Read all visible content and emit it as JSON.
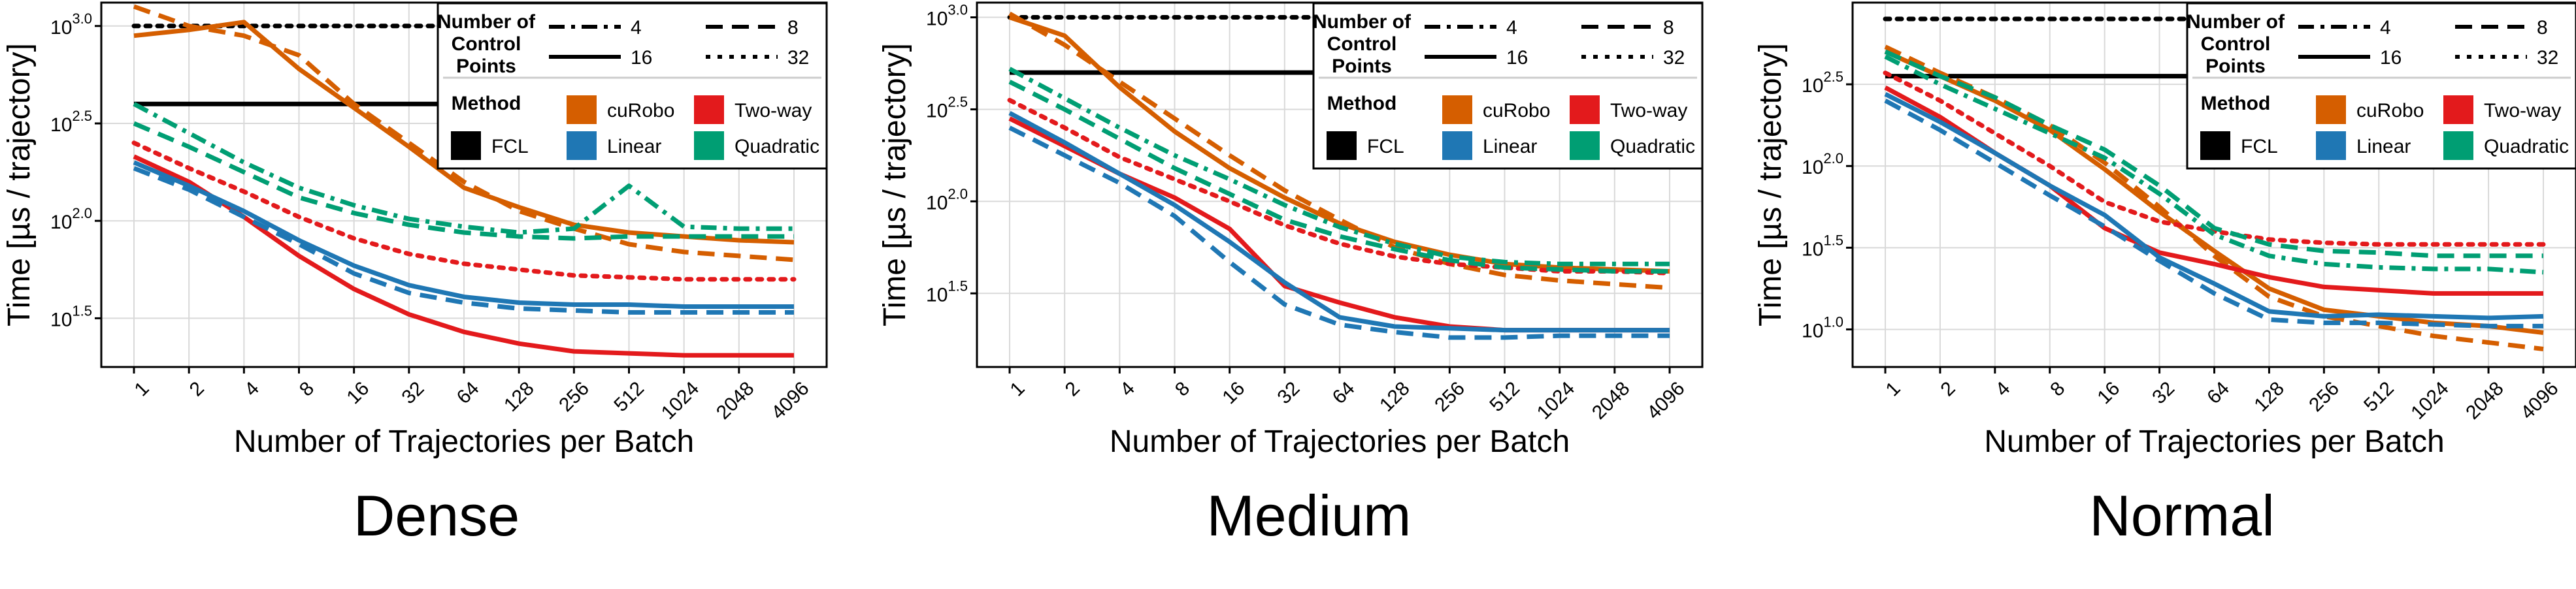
{
  "colors": {
    "FCL": "#000000",
    "cuRobo": "#D55E00",
    "Two-way": "#E31A1C",
    "Linear": "#1F77B4",
    "Quadratic": "#009E73",
    "grid": "#d9d9d9"
  },
  "legend": {
    "control_points_title": [
      "Number of",
      "Control",
      "Points"
    ],
    "control_points": [
      {
        "label": "4",
        "dash": "dashdot"
      },
      {
        "label": "8",
        "dash": "dash"
      },
      {
        "label": "16",
        "dash": "solid"
      },
      {
        "label": "32",
        "dash": "dot"
      }
    ],
    "method_title": "Method",
    "methods": [
      "FCL",
      "cuRobo",
      "Two-way",
      "Linear",
      "Quadratic"
    ]
  },
  "chart_data": [
    {
      "type": "line",
      "caption": "Dense",
      "xlabel": "Number of Trajectories per Batch",
      "ylabel": "Time [µs / trajectory]",
      "x": [
        1,
        2,
        4,
        8,
        16,
        32,
        64,
        128,
        256,
        512,
        1024,
        2048,
        4096
      ],
      "yscale": "log10",
      "ylim_log10": [
        1.25,
        3.12
      ],
      "yticks_log10": [
        1.5,
        2.0,
        2.5,
        3.0
      ],
      "ytick_labels": [
        "1.5",
        "2.0",
        "2.5",
        "3.0"
      ],
      "grid": true,
      "legend_position": "top-right",
      "series": [
        {
          "method": "FCL",
          "points": "16",
          "log10": [
            2.6,
            2.6,
            2.6,
            2.6,
            2.6,
            2.6,
            2.6,
            2.6,
            2.6,
            2.6,
            2.6,
            2.6,
            2.6
          ]
        },
        {
          "method": "FCL",
          "points": "32",
          "log10": [
            3.0,
            3.0,
            3.0,
            3.0,
            3.0,
            3.0,
            3.0,
            3.0,
            3.0,
            3.0,
            3.0,
            3.0,
            3.0
          ]
        },
        {
          "method": "cuRobo",
          "points": "16",
          "log10": [
            2.95,
            2.98,
            3.02,
            2.78,
            2.58,
            2.38,
            2.17,
            2.07,
            1.98,
            1.94,
            1.92,
            1.9,
            1.89
          ]
        },
        {
          "method": "cuRobo",
          "points": "8",
          "log10": [
            3.1,
            3.0,
            2.95,
            2.85,
            2.6,
            2.4,
            2.2,
            2.05,
            1.96,
            1.88,
            1.84,
            1.82,
            1.8
          ]
        },
        {
          "method": "Two-way",
          "points": "16",
          "log10": [
            2.33,
            2.2,
            2.02,
            1.82,
            1.65,
            1.52,
            1.43,
            1.37,
            1.33,
            1.32,
            1.31,
            1.31,
            1.31
          ]
        },
        {
          "method": "Two-way",
          "points": "32",
          "log10": [
            2.4,
            2.27,
            2.15,
            2.02,
            1.91,
            1.83,
            1.78,
            1.75,
            1.72,
            1.71,
            1.7,
            1.7,
            1.7
          ]
        },
        {
          "method": "Linear",
          "points": "16",
          "log10": [
            2.3,
            2.18,
            2.05,
            1.9,
            1.77,
            1.67,
            1.61,
            1.58,
            1.57,
            1.57,
            1.56,
            1.56,
            1.56
          ]
        },
        {
          "method": "Linear",
          "points": "8",
          "log10": [
            2.27,
            2.16,
            2.02,
            1.88,
            1.73,
            1.63,
            1.58,
            1.55,
            1.54,
            1.53,
            1.53,
            1.53,
            1.53
          ]
        },
        {
          "method": "Quadratic",
          "points": "4",
          "log10": [
            2.6,
            2.45,
            2.3,
            2.17,
            2.08,
            2.01,
            1.97,
            1.94,
            1.96,
            2.18,
            1.97,
            1.96,
            1.96
          ]
        },
        {
          "method": "Quadratic",
          "points": "8",
          "log10": [
            2.5,
            2.38,
            2.25,
            2.12,
            2.04,
            1.98,
            1.94,
            1.92,
            1.91,
            1.92,
            1.92,
            1.92,
            1.92
          ]
        }
      ]
    },
    {
      "type": "line",
      "caption": "Medium",
      "xlabel": "Number of Trajectories per Batch",
      "ylabel": "Time [µs / trajectory]",
      "x": [
        1,
        2,
        4,
        8,
        16,
        32,
        64,
        128,
        256,
        512,
        1024,
        2048,
        4096
      ],
      "yscale": "log10",
      "ylim_log10": [
        1.1,
        3.08
      ],
      "yticks_log10": [
        1.5,
        2.0,
        2.5,
        3.0
      ],
      "ytick_labels": [
        "1.5",
        "2.0",
        "2.5",
        "3.0"
      ],
      "grid": true,
      "legend_position": "top-right",
      "series": [
        {
          "method": "FCL",
          "points": "16",
          "log10": [
            2.7,
            2.7,
            2.7,
            2.7,
            2.7,
            2.7,
            2.7,
            2.7,
            2.7,
            2.7,
            2.7,
            2.7,
            2.7
          ]
        },
        {
          "method": "FCL",
          "points": "32",
          "log10": [
            3.0,
            3.0,
            3.0,
            3.0,
            3.0,
            3.0,
            3.0,
            3.0,
            3.0,
            3.0,
            3.0,
            3.0,
            3.0
          ]
        },
        {
          "method": "cuRobo",
          "points": "16",
          "log10": [
            3.0,
            2.9,
            2.62,
            2.38,
            2.18,
            2.02,
            1.88,
            1.78,
            1.71,
            1.66,
            1.64,
            1.63,
            1.62
          ]
        },
        {
          "method": "cuRobo",
          "points": "8",
          "log10": [
            3.02,
            2.85,
            2.65,
            2.45,
            2.25,
            2.06,
            1.9,
            1.75,
            1.66,
            1.6,
            1.57,
            1.55,
            1.53
          ]
        },
        {
          "method": "Two-way",
          "points": "16",
          "log10": [
            2.45,
            2.3,
            2.15,
            2.02,
            1.85,
            1.54,
            1.45,
            1.37,
            1.32,
            1.3,
            1.3,
            1.3,
            1.3
          ]
        },
        {
          "method": "Two-way",
          "points": "32",
          "log10": [
            2.55,
            2.4,
            2.24,
            2.12,
            2.0,
            1.87,
            1.77,
            1.7,
            1.66,
            1.64,
            1.62,
            1.62,
            1.61
          ]
        },
        {
          "method": "Linear",
          "points": "16",
          "log10": [
            2.48,
            2.32,
            2.15,
            1.98,
            1.78,
            1.56,
            1.37,
            1.32,
            1.31,
            1.3,
            1.3,
            1.3,
            1.3
          ]
        },
        {
          "method": "Linear",
          "points": "8",
          "log10": [
            2.4,
            2.25,
            2.1,
            1.92,
            1.67,
            1.44,
            1.33,
            1.29,
            1.26,
            1.26,
            1.27,
            1.27,
            1.27
          ]
        },
        {
          "method": "Quadratic",
          "points": "4",
          "log10": [
            2.72,
            2.56,
            2.4,
            2.25,
            2.12,
            1.98,
            1.86,
            1.77,
            1.7,
            1.67,
            1.66,
            1.66,
            1.66
          ]
        },
        {
          "method": "Quadratic",
          "points": "8",
          "log10": [
            2.65,
            2.5,
            2.34,
            2.18,
            2.04,
            1.9,
            1.81,
            1.74,
            1.68,
            1.64,
            1.63,
            1.62,
            1.62
          ]
        }
      ]
    },
    {
      "type": "line",
      "caption": "Normal",
      "xlabel": "Number of Trajectories per Batch",
      "ylabel": "Time [µs / trajectory]",
      "x": [
        1,
        2,
        4,
        8,
        16,
        32,
        64,
        128,
        256,
        512,
        1024,
        2048,
        4096
      ],
      "yscale": "log10",
      "ylim_log10": [
        0.77,
        3.0
      ],
      "yticks_log10": [
        1.0,
        1.5,
        2.0,
        2.5
      ],
      "ytick_labels": [
        "1.0",
        "1.5",
        "2.0",
        "2.5"
      ],
      "grid": true,
      "legend_position": "top-right",
      "series": [
        {
          "method": "FCL",
          "points": "16",
          "log10": [
            2.55,
            2.55,
            2.55,
            2.55,
            2.55,
            2.55,
            2.55,
            2.55,
            2.55,
            2.55,
            2.55,
            2.55,
            2.55
          ]
        },
        {
          "method": "FCL",
          "points": "32",
          "log10": [
            2.9,
            2.9,
            2.9,
            2.9,
            2.9,
            2.9,
            2.9,
            2.9,
            2.9,
            2.9,
            2.9,
            2.9,
            2.9
          ]
        },
        {
          "method": "cuRobo",
          "points": "16",
          "log10": [
            2.7,
            2.55,
            2.4,
            2.22,
            1.98,
            1.72,
            1.48,
            1.25,
            1.12,
            1.08,
            1.04,
            1.02,
            0.98
          ]
        },
        {
          "method": "cuRobo",
          "points": "8",
          "log10": [
            2.73,
            2.57,
            2.42,
            2.25,
            2.02,
            1.75,
            1.45,
            1.2,
            1.08,
            1.02,
            0.96,
            0.92,
            0.88
          ]
        },
        {
          "method": "Two-way",
          "points": "16",
          "log10": [
            2.48,
            2.3,
            2.08,
            1.88,
            1.62,
            1.47,
            1.4,
            1.32,
            1.26,
            1.24,
            1.22,
            1.22,
            1.22
          ]
        },
        {
          "method": "Two-way",
          "points": "32",
          "log10": [
            2.57,
            2.4,
            2.2,
            2.0,
            1.78,
            1.66,
            1.6,
            1.55,
            1.53,
            1.52,
            1.52,
            1.52,
            1.52
          ]
        },
        {
          "method": "Linear",
          "points": "16",
          "log10": [
            2.44,
            2.27,
            2.08,
            1.88,
            1.7,
            1.44,
            1.28,
            1.11,
            1.08,
            1.09,
            1.08,
            1.07,
            1.08
          ]
        },
        {
          "method": "Linear",
          "points": "8",
          "log10": [
            2.4,
            2.22,
            2.02,
            1.82,
            1.63,
            1.42,
            1.22,
            1.06,
            1.04,
            1.04,
            1.03,
            1.02,
            1.02
          ]
        },
        {
          "method": "Quadratic",
          "points": "4",
          "log10": [
            2.67,
            2.5,
            2.35,
            2.2,
            2.05,
            1.83,
            1.58,
            1.45,
            1.4,
            1.38,
            1.37,
            1.37,
            1.35
          ]
        },
        {
          "method": "Quadratic",
          "points": "8",
          "log10": [
            2.7,
            2.55,
            2.42,
            2.25,
            2.1,
            1.88,
            1.62,
            1.52,
            1.48,
            1.47,
            1.45,
            1.45,
            1.45
          ]
        }
      ]
    }
  ]
}
